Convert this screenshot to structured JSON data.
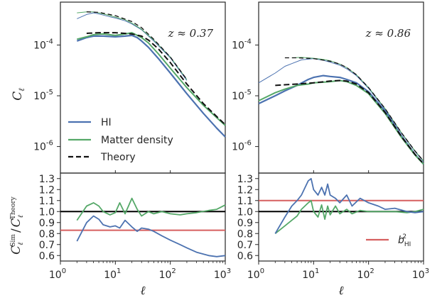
{
  "chart_data": {
    "type": "line",
    "colors": {
      "hi": "#4C72B0",
      "matter": "#55A868",
      "theory": "#111111",
      "unity": "#000000",
      "bias": "#D65F5F",
      "axis": "#262626"
    },
    "shared": {
      "x_scale": "log",
      "xlim": [
        1,
        1000
      ],
      "x_ticks": [
        {
          "v": 1,
          "b": "10",
          "e": "0"
        },
        {
          "v": 10,
          "b": "10",
          "e": "1"
        },
        {
          "v": 100,
          "b": "10",
          "e": "2"
        },
        {
          "v": 1000,
          "b": "10",
          "e": "3"
        }
      ],
      "xlabel": "ℓ",
      "top_ylabel": "C",
      "top_ylabel_sub": "ℓ",
      "bottom_ylabel_html": "C_ℓ^Sim / C_ℓ^Theory",
      "top_y_scale": "log",
      "top_ylim": [
        3e-07,
        0.0007
      ],
      "top_y_ticks": [
        {
          "v": 1e-06,
          "b": "10",
          "e": "-6"
        },
        {
          "v": 1e-05,
          "b": "10",
          "e": "-5"
        },
        {
          "v": 0.0001,
          "b": "10",
          "e": "-4"
        }
      ],
      "bottom_ylim": [
        0.55,
        1.35
      ],
      "bottom_y_ticks": [
        "0.6",
        "0.7",
        "0.8",
        "0.9",
        "1.0",
        "1.1",
        "1.2",
        "1.3"
      ]
    },
    "legend": {
      "placement": "lower-left of left top panel",
      "entries": [
        {
          "label": "HI",
          "series": "hi"
        },
        {
          "label": "Matter density",
          "series": "matter"
        },
        {
          "label": "Theory",
          "series": "theory"
        }
      ]
    },
    "bias_legend": {
      "label": "b",
      "sub": "HI",
      "sup": "2",
      "placement": "lower-right of right bottom panel"
    },
    "panels": [
      {
        "annotation": "z ≈ 0.37",
        "bias_squared": 0.83,
        "top": {
          "hi": {
            "x": [
              2,
              3,
              4,
              6,
              10,
              15,
              20,
              25,
              30,
              40,
              60,
              100,
              200,
              400,
              700,
              1000
            ],
            "y": [
              0.00012,
              0.00014,
              0.00015,
              0.00015,
              0.000145,
              0.00015,
              0.000155,
              0.00014,
              0.00012,
              9e-05,
              5.5e-05,
              2.8e-05,
              1.1e-05,
              4.5e-06,
              2.3e-06,
              1.55e-06
            ]
          },
          "matter": {
            "x": [
              2,
              3,
              4,
              6,
              10,
              15,
              20,
              25,
              30,
              40,
              60,
              100,
              200,
              400,
              700,
              1000
            ],
            "y": [
              0.00013,
              0.000145,
              0.00016,
              0.000165,
              0.000155,
              0.000165,
              0.000175,
              0.000155,
              0.00014,
              0.00011,
              6.8e-05,
              3.5e-05,
              1.45e-05,
              6.5e-06,
              3.7e-06,
              2.6e-06
            ]
          },
          "theory": {
            "x": [
              3,
              5,
              10,
              20,
              30,
              40,
              60,
              100,
              200,
              400,
              700,
              1000
            ],
            "y": [
              0.00017,
              0.000175,
              0.000175,
              0.000165,
              0.00015,
              0.000125,
              8.5e-05,
              4.5e-05,
              1.7e-05,
              7e-06,
              3.9e-06,
              2.7e-06
            ]
          },
          "hi_thin": {
            "x": [
              2,
              3,
              4,
              5,
              6,
              8,
              10,
              15,
              20,
              30,
              50,
              100,
              200
            ],
            "y": [
              0.00033,
              0.0004,
              0.00043,
              0.00041,
              0.00039,
              0.00036,
              0.00034,
              0.0003,
              0.00026,
              0.0002,
              0.00012,
              5.6e-05,
              2e-05
            ]
          },
          "matter_thin": {
            "x": [
              2,
              3,
              4,
              5,
              6,
              8,
              10,
              15,
              20,
              30,
              50,
              100,
              200
            ],
            "y": [
              0.00043,
              0.00045,
              0.00045,
              0.00043,
              0.00041,
              0.00038,
              0.000355,
              0.000315,
              0.00027,
              0.000205,
              0.000125,
              5.8e-05,
              2.1e-05
            ]
          },
          "theory_thin": {
            "x": [
              3,
              5,
              10,
              20,
              30,
              50,
              100,
              200
            ],
            "y": [
              0.00045,
              0.00044,
              0.00038,
              0.00029,
              0.00022,
              0.00013,
              5.8e-05,
              2.1e-05
            ]
          }
        },
        "ratio": {
          "hi": {
            "x": [
              2,
              3,
              4,
              5,
              6,
              8,
              10,
              12,
              15,
              20,
              25,
              30,
              40,
              50,
              70,
              100,
              150,
              200,
              300,
              500,
              700,
              1000
            ],
            "y": [
              0.73,
              0.9,
              0.96,
              0.93,
              0.88,
              0.86,
              0.87,
              0.85,
              0.92,
              0.86,
              0.82,
              0.85,
              0.84,
              0.82,
              0.78,
              0.74,
              0.7,
              0.67,
              0.63,
              0.6,
              0.59,
              0.6
            ]
          },
          "matter": {
            "x": [
              2,
              3,
              4,
              5,
              6,
              8,
              10,
              12,
              15,
              20,
              25,
              30,
              40,
              50,
              70,
              100,
              150,
              200,
              300,
              500,
              700,
              1000
            ],
            "y": [
              0.92,
              1.05,
              1.08,
              1.05,
              1.0,
              0.97,
              0.99,
              1.08,
              0.98,
              1.12,
              1.02,
              0.96,
              1.0,
              0.98,
              1.0,
              0.98,
              0.97,
              0.98,
              0.99,
              1.01,
              1.02,
              1.06
            ]
          }
        }
      },
      {
        "annotation": "z ≈ 0.86",
        "bias_squared": 1.1,
        "top": {
          "hi": {
            "x": [
              1,
              2,
              3,
              5,
              8,
              10,
              15,
              20,
              30,
              40,
              60,
              100,
              200,
              400,
              700,
              1000
            ],
            "y": [
              7e-06,
              1e-05,
              1.25e-05,
              1.6e-05,
              2.1e-05,
              2.3e-05,
              2.5e-05,
              2.4e-05,
              2.3e-05,
              2.1e-05,
              1.8e-05,
              1.2e-05,
              5e-06,
              1.6e-06,
              7e-07,
              4.5e-07
            ]
          },
          "matter": {
            "x": [
              1,
              2,
              3,
              5,
              8,
              10,
              15,
              20,
              30,
              40,
              60,
              100,
              200,
              400,
              700,
              1000
            ],
            "y": [
              8e-06,
              1.15e-05,
              1.35e-05,
              1.6e-05,
              1.7e-05,
              1.8e-05,
              1.85e-05,
              1.9e-05,
              2e-05,
              1.9e-05,
              1.6e-05,
              1.1e-05,
              4.5e-06,
              1.5e-06,
              6.8e-07,
              4.5e-07
            ]
          },
          "theory": {
            "x": [
              2,
              3,
              5,
              10,
              20,
              30,
              40,
              60,
              100,
              200,
              400,
              700,
              1000
            ],
            "y": [
              1.6e-05,
              1.65e-05,
              1.7e-05,
              1.8e-05,
              1.95e-05,
              2e-05,
              1.95e-05,
              1.7e-05,
              1.15e-05,
              4.7e-06,
              1.55e-06,
              7e-07,
              4.6e-07
            ]
          },
          "hi_thin": {
            "x": [
              1,
              2,
              3,
              4,
              6,
              10,
              15,
              20,
              30,
              40,
              60,
              100,
              200,
              400,
              700,
              1000
            ],
            "y": [
              1.8e-05,
              2.8e-05,
              3.8e-05,
              4.3e-05,
              5.1e-05,
              5.4e-05,
              5e-05,
              4.6e-05,
              4e-05,
              3.4e-05,
              2.5e-05,
              1.4e-05,
              5.4e-06,
              1.8e-06,
              8e-07,
              5e-07
            ]
          },
          "matter_thin": {
            "x": [
              4,
              6,
              10,
              15,
              20,
              30,
              40,
              60,
              100,
              200,
              400,
              700,
              1000
            ],
            "y": [
              5.6e-05,
              5.7e-05,
              5.5e-05,
              5.2e-05,
              4.9e-05,
              4.2e-05,
              3.6e-05,
              2.6e-05,
              1.45e-05,
              5.6e-06,
              1.85e-06,
              8.2e-07,
              5.2e-07
            ]
          },
          "theory_thin": {
            "x": [
              3,
              5,
              10,
              20,
              30,
              40,
              60,
              100,
              200,
              400,
              700,
              1000
            ],
            "y": [
              5.6e-05,
              5.6e-05,
              5.4e-05,
              4.8e-05,
              4.2e-05,
              3.6e-05,
              2.6e-05,
              1.45e-05,
              5.6e-06,
              1.85e-06,
              8.2e-07,
              5.2e-07
            ]
          }
        },
        "ratio": {
          "hi": {
            "x": [
              2,
              3,
              4,
              5,
              6,
              8,
              9,
              10,
              12,
              14,
              16,
              18,
              20,
              25,
              30,
              40,
              50,
              70,
              100,
              150,
              200,
              300,
              500,
              700,
              1000
            ],
            "y": [
              0.8,
              0.95,
              1.05,
              1.1,
              1.15,
              1.28,
              1.3,
              1.2,
              1.15,
              1.22,
              1.15,
              1.25,
              1.15,
              1.12,
              1.08,
              1.15,
              1.05,
              1.12,
              1.08,
              1.05,
              1.02,
              1.03,
              1.0,
              0.99,
              1.0
            ]
          },
          "matter": {
            "x": [
              2,
              3,
              4,
              5,
              6,
              8,
              9,
              10,
              12,
              14,
              16,
              18,
              20,
              25,
              30,
              40,
              50,
              70,
              100,
              150,
              200,
              300,
              500,
              700,
              1000
            ],
            "y": [
              0.8,
              0.87,
              0.92,
              0.96,
              1.02,
              1.08,
              1.1,
              1.0,
              0.95,
              1.06,
              0.93,
              1.05,
              0.97,
              1.05,
              0.98,
              1.02,
              0.98,
              1.01,
              1.0,
              1.0,
              1.0,
              1.0,
              0.99,
              1.0,
              1.02
            ]
          }
        }
      }
    ]
  }
}
